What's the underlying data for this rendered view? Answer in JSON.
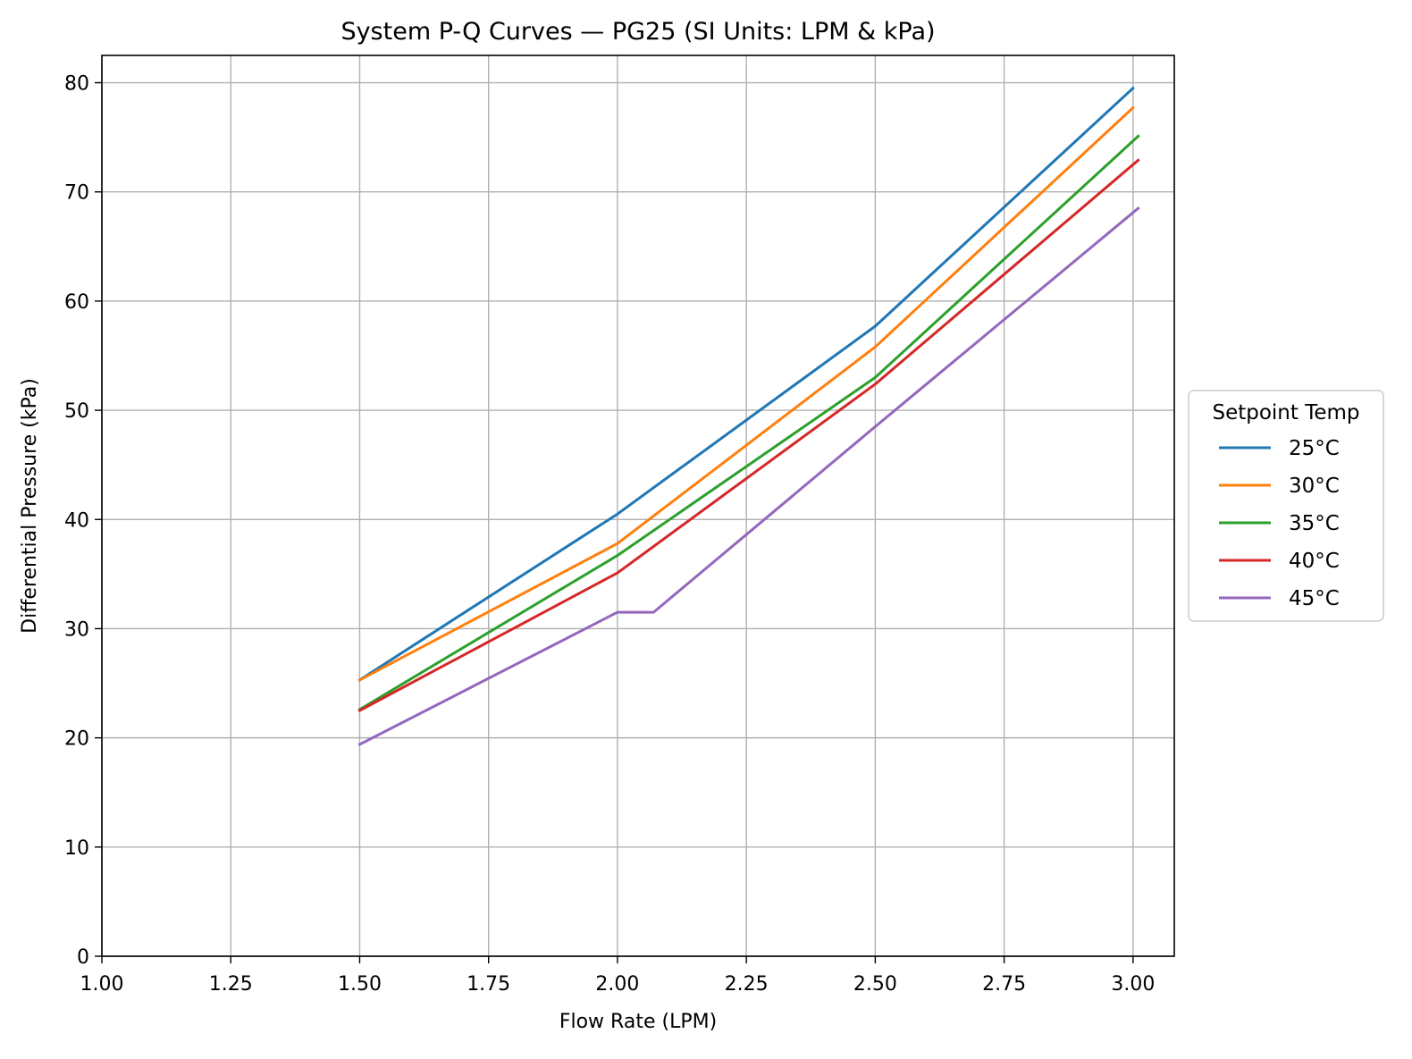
{
  "chart_data": {
    "type": "line",
    "title": "System P-Q Curves — PG25 (SI Units: LPM & kPa)",
    "xlabel": "Flow Rate (LPM)",
    "ylabel": "Differential Pressure (kPa)",
    "xlim": [
      1.0,
      3.08
    ],
    "ylim": [
      0,
      82.5
    ],
    "xticks": [
      1.0,
      1.25,
      1.5,
      1.75,
      2.0,
      2.25,
      2.5,
      2.75,
      3.0
    ],
    "xtick_labels": [
      "1.00",
      "1.25",
      "1.50",
      "1.75",
      "2.00",
      "2.25",
      "2.50",
      "2.75",
      "3.00"
    ],
    "yticks": [
      0,
      10,
      20,
      30,
      40,
      50,
      60,
      70,
      80
    ],
    "ytick_labels": [
      "0",
      "10",
      "20",
      "30",
      "40",
      "50",
      "60",
      "70",
      "80"
    ],
    "grid": true,
    "legend": {
      "title": "Setpoint Temp",
      "placement": "outside-right"
    },
    "series": [
      {
        "name": "25°C",
        "color": "#1f77b4",
        "x": [
          1.5,
          2.0,
          2.5,
          3.0
        ],
        "y": [
          25.3,
          40.5,
          57.7,
          79.5
        ]
      },
      {
        "name": "30°C",
        "color": "#ff7f0e",
        "x": [
          1.5,
          2.0,
          2.5,
          3.0
        ],
        "y": [
          25.3,
          37.8,
          55.8,
          77.7
        ]
      },
      {
        "name": "35°C",
        "color": "#2ca02c",
        "x": [
          1.5,
          2.0,
          2.5,
          3.01
        ],
        "y": [
          22.6,
          36.7,
          53.0,
          75.1
        ]
      },
      {
        "name": "40°C",
        "color": "#d62728",
        "x": [
          1.5,
          2.0,
          2.5,
          3.01
        ],
        "y": [
          22.5,
          35.1,
          52.4,
          72.9
        ]
      },
      {
        "name": "45°C",
        "color": "#9467bd",
        "x": [
          1.5,
          2.0,
          2.07,
          2.5,
          3.01
        ],
        "y": [
          19.4,
          31.5,
          31.5,
          48.5,
          68.5
        ]
      }
    ]
  }
}
